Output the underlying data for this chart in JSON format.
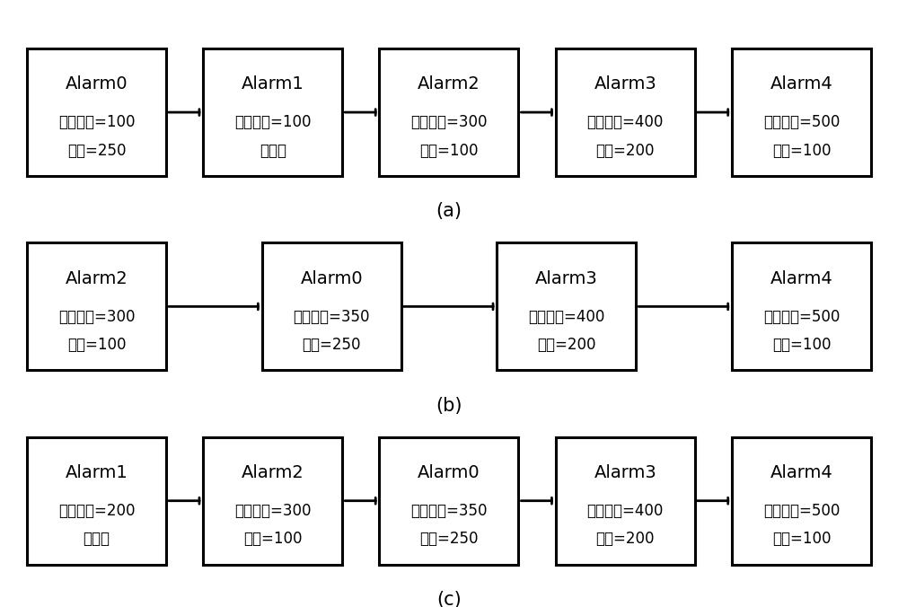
{
  "rows": [
    {
      "label": "(a)",
      "boxes": [
        {
          "title": "Alarm0",
          "line1": "到期时间=100",
          "line2": "周期=250"
        },
        {
          "title": "Alarm1",
          "line1": "到期时间=100",
          "line2": "非周期"
        },
        {
          "title": "Alarm2",
          "line1": "到期时间=300",
          "line2": "周期=100"
        },
        {
          "title": "Alarm3",
          "line1": "到期时间=400",
          "line2": "周期=200"
        },
        {
          "title": "Alarm4",
          "line1": "到期时间=500",
          "line2": "周期=100"
        }
      ]
    },
    {
      "label": "(b)",
      "boxes": [
        {
          "title": "Alarm2",
          "line1": "到期时间=300",
          "line2": "周期=100"
        },
        {
          "title": "Alarm0",
          "line1": "到期时间=350",
          "line2": "周期=250"
        },
        {
          "title": "Alarm3",
          "line1": "到期时间=400",
          "line2": "周期=200"
        },
        {
          "title": "Alarm4",
          "line1": "到期时间=500",
          "line2": "周期=100"
        }
      ]
    },
    {
      "label": "(c)",
      "boxes": [
        {
          "title": "Alarm1",
          "line1": "到期时间=200",
          "line2": "非周期"
        },
        {
          "title": "Alarm2",
          "line1": "到期时间=300",
          "line2": "周期=100"
        },
        {
          "title": "Alarm0",
          "line1": "到期时间=350",
          "line2": "周期=250"
        },
        {
          "title": "Alarm3",
          "line1": "到期时间=400",
          "line2": "周期=200"
        },
        {
          "title": "Alarm4",
          "line1": "到期时间=500",
          "line2": "周期=100"
        }
      ]
    }
  ],
  "bg_color": "#ffffff",
  "box_face_color": "#ffffff",
  "box_edge_color": "#000000",
  "text_color": "#000000",
  "arrow_color": "#000000",
  "title_fontsize": 14,
  "content_fontsize": 12,
  "label_fontsize": 15
}
